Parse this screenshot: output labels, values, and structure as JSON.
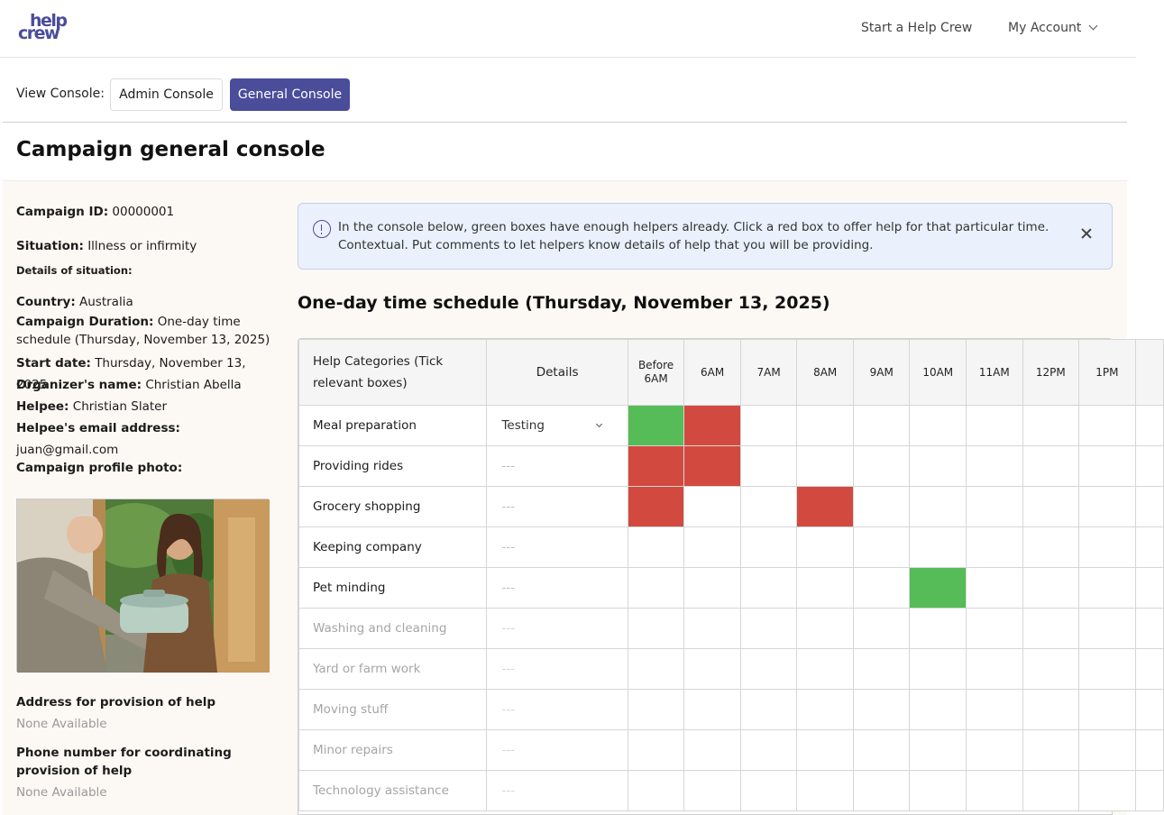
{
  "header": {
    "logo_line1": "help",
    "logo_line2": "crew",
    "nav_start": "Start a Help Crew",
    "nav_account": "My Account"
  },
  "console": {
    "label": "View Console:",
    "admin_label": "Admin Console",
    "general_label": "General Console",
    "active": "General Console"
  },
  "page": {
    "title": "Campaign general console"
  },
  "campaign": {
    "id_label": "Campaign ID:",
    "id_value": "00000001",
    "situation_label": "Situation:",
    "situation_value": "Illness or infirmity",
    "details_label": "Details of situation:",
    "country_label": "Country:",
    "country_value": "Australia",
    "duration_label": "Campaign Duration:",
    "duration_value": "One-day time schedule (Thursday, November 13, 2025)",
    "start_label": "Start date:",
    "start_value": "Thursday, November 13, 2025",
    "organizer_label": "Organizer's name:",
    "organizer_value": "Christian Abella",
    "helpee_label": "Helpee:",
    "helpee_value": "Christian Slater",
    "email_label": "Helpee's email address:",
    "email_value": "juan@gmail.com",
    "photo_label": "Campaign profile photo:",
    "address_label": "Address for provision of help",
    "address_value": "None Available",
    "phone_label": "Phone number for coordinating provision of help",
    "phone_value": "None Available"
  },
  "banner": {
    "text": "In the console below, green boxes have enough helpers already. Click a red box to offer help for that particular time. Contextual. Put comments to let helpers know details of help that you will be providing."
  },
  "schedule": {
    "title": "One-day time schedule (Thursday, November 13, 2025)",
    "header_category": "Help Categories (Tick relevant boxes)",
    "header_details": "Details",
    "times": [
      "Before 6AM",
      "6AM",
      "7AM",
      "8AM",
      "9AM",
      "10AM",
      "11AM",
      "12PM",
      "1PM"
    ],
    "rows": [
      {
        "category": "Meal preparation",
        "details": "Testing",
        "select": true,
        "dim": false,
        "slots": [
          "green",
          "red",
          "",
          "",
          "",
          "",
          "",
          "",
          ""
        ]
      },
      {
        "category": "Providing rides",
        "details": "---",
        "select": false,
        "dim": false,
        "slots": [
          "red",
          "red",
          "",
          "",
          "",
          "",
          "",
          "",
          ""
        ]
      },
      {
        "category": "Grocery shopping",
        "details": "---",
        "select": false,
        "dim": false,
        "slots": [
          "red",
          "",
          "",
          "red",
          "",
          "",
          "",
          "",
          ""
        ]
      },
      {
        "category": "Keeping company",
        "details": "---",
        "select": false,
        "dim": false,
        "slots": [
          "",
          "",
          "",
          "",
          "",
          "",
          "",
          "",
          ""
        ]
      },
      {
        "category": "Pet minding",
        "details": "---",
        "select": false,
        "dim": false,
        "slots": [
          "",
          "",
          "",
          "",
          "",
          "green",
          "",
          "",
          ""
        ]
      },
      {
        "category": "Washing and cleaning",
        "details": "---",
        "select": false,
        "dim": true,
        "slots": [
          "",
          "",
          "",
          "",
          "",
          "",
          "",
          "",
          ""
        ]
      },
      {
        "category": "Yard or farm work",
        "details": "---",
        "select": false,
        "dim": true,
        "slots": [
          "",
          "",
          "",
          "",
          "",
          "",
          "",
          "",
          ""
        ]
      },
      {
        "category": "Moving stuff",
        "details": "---",
        "select": false,
        "dim": true,
        "slots": [
          "",
          "",
          "",
          "",
          "",
          "",
          "",
          "",
          ""
        ]
      },
      {
        "category": "Minor repairs",
        "details": "---",
        "select": false,
        "dim": true,
        "slots": [
          "",
          "",
          "",
          "",
          "",
          "",
          "",
          "",
          ""
        ]
      },
      {
        "category": "Technology assistance",
        "details": "---",
        "select": false,
        "dim": true,
        "slots": [
          "",
          "",
          "",
          "",
          "",
          "",
          "",
          "",
          ""
        ]
      }
    ]
  },
  "colors": {
    "brand": "#4a4d9a",
    "enough_helpers": "#56bc57",
    "needs_help": "#d24a3f"
  }
}
